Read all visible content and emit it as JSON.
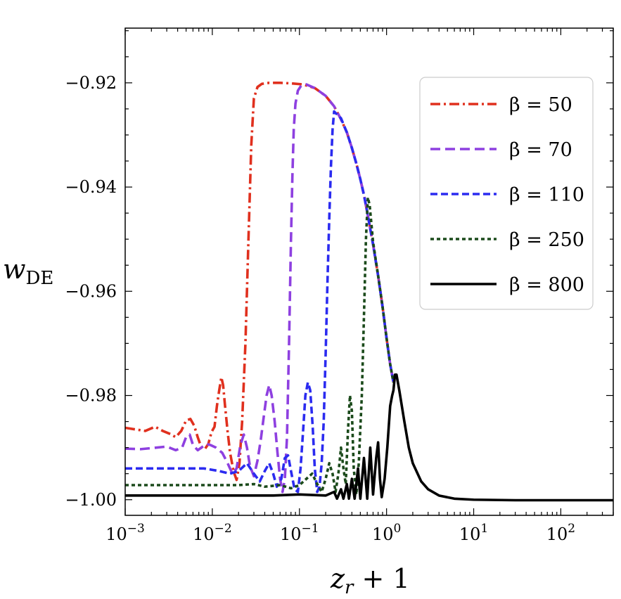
{
  "chart_data": {
    "type": "line",
    "xscale": "log",
    "xlim": [
      0.001,
      400
    ],
    "ylim": [
      -1.003,
      -0.9095
    ],
    "grid": false,
    "legend_position": "top-right",
    "xlabel": {
      "main": "z",
      "sub": "r",
      "rest": " + 1"
    },
    "ylabel": {
      "main": "w",
      "sub": "DE"
    },
    "x_ticks": [
      {
        "value": 0.001,
        "base": "10",
        "exp": "−3"
      },
      {
        "value": 0.01,
        "base": "10",
        "exp": "−2"
      },
      {
        "value": 0.1,
        "base": "10",
        "exp": "−1"
      },
      {
        "value": 1,
        "base": "10",
        "exp": "0"
      },
      {
        "value": 10,
        "base": "10",
        "exp": "1"
      },
      {
        "value": 100,
        "base": "10",
        "exp": "2"
      }
    ],
    "y_ticks": [
      {
        "value": -0.92,
        "label": "−0.92"
      },
      {
        "value": -0.94,
        "label": "−0.94"
      },
      {
        "value": -0.96,
        "label": "−0.96"
      },
      {
        "value": -0.98,
        "label": "−0.98"
      },
      {
        "value": -1.0,
        "label": "−1.00"
      }
    ],
    "series": [
      {
        "name": "β = 50",
        "color": "#e0301e",
        "dash": "dashdot",
        "points": [
          [
            0.001,
            -0.9862
          ],
          [
            0.0013,
            -0.9865
          ],
          [
            0.0017,
            -0.9868
          ],
          [
            0.0022,
            -0.986
          ],
          [
            0.0027,
            -0.9868
          ],
          [
            0.0033,
            -0.9874
          ],
          [
            0.0038,
            -0.988
          ],
          [
            0.0044,
            -0.9868
          ],
          [
            0.005,
            -0.9848
          ],
          [
            0.0056,
            -0.9845
          ],
          [
            0.0062,
            -0.9858
          ],
          [
            0.0068,
            -0.988
          ],
          [
            0.0075,
            -0.99
          ],
          [
            0.0082,
            -0.9903
          ],
          [
            0.009,
            -0.9893
          ],
          [
            0.0098,
            -0.987
          ],
          [
            0.0106,
            -0.986
          ],
          [
            0.0113,
            -0.982
          ],
          [
            0.012,
            -0.979
          ],
          [
            0.0127,
            -0.9765
          ],
          [
            0.0133,
            -0.978
          ],
          [
            0.014,
            -0.982
          ],
          [
            0.015,
            -0.987
          ],
          [
            0.016,
            -0.991
          ],
          [
            0.0175,
            -0.9945
          ],
          [
            0.019,
            -0.9962
          ],
          [
            0.0205,
            -0.993
          ],
          [
            0.022,
            -0.985
          ],
          [
            0.024,
            -0.97
          ],
          [
            0.026,
            -0.95
          ],
          [
            0.028,
            -0.932
          ],
          [
            0.03,
            -0.923
          ],
          [
            0.033,
            -0.9208
          ],
          [
            0.037,
            -0.9202
          ],
          [
            0.045,
            -0.92
          ],
          [
            0.06,
            -0.92
          ],
          [
            0.08,
            -0.9201
          ],
          [
            0.11,
            -0.9203
          ],
          [
            0.15,
            -0.921
          ],
          [
            0.2,
            -0.9225
          ],
          [
            0.25,
            -0.9245
          ],
          [
            0.3,
            -0.927
          ],
          [
            0.35,
            -0.9295
          ],
          [
            0.4,
            -0.9325
          ],
          [
            0.45,
            -0.9355
          ],
          [
            0.5,
            -0.9385
          ],
          [
            0.55,
            -0.9415
          ],
          [
            0.6,
            -0.9448
          ],
          [
            0.7,
            -0.951
          ],
          [
            0.8,
            -0.957
          ],
          [
            0.9,
            -0.963
          ],
          [
            1.0,
            -0.969
          ],
          [
            1.1,
            -0.974
          ],
          [
            1.2,
            -0.9775
          ]
        ]
      },
      {
        "name": "β = 70",
        "color": "#8e40e0",
        "dash": "dashed",
        "points": [
          [
            0.001,
            -0.9902
          ],
          [
            0.0015,
            -0.9903
          ],
          [
            0.002,
            -0.9901
          ],
          [
            0.003,
            -0.9898
          ],
          [
            0.0038,
            -0.9905
          ],
          [
            0.0045,
            -0.99
          ],
          [
            0.005,
            -0.988
          ],
          [
            0.0055,
            -0.9875
          ],
          [
            0.006,
            -0.9895
          ],
          [
            0.0068,
            -0.9905
          ],
          [
            0.0075,
            -0.99
          ],
          [
            0.0085,
            -0.9893
          ],
          [
            0.0095,
            -0.9895
          ],
          [
            0.011,
            -0.99
          ],
          [
            0.013,
            -0.991
          ],
          [
            0.015,
            -0.993
          ],
          [
            0.017,
            -0.995
          ],
          [
            0.019,
            -0.994
          ],
          [
            0.021,
            -0.9895
          ],
          [
            0.023,
            -0.9875
          ],
          [
            0.025,
            -0.99
          ],
          [
            0.027,
            -0.9935
          ],
          [
            0.03,
            -0.9955
          ],
          [
            0.033,
            -0.9925
          ],
          [
            0.036,
            -0.9885
          ],
          [
            0.039,
            -0.984
          ],
          [
            0.042,
            -0.98
          ],
          [
            0.045,
            -0.978
          ],
          [
            0.048,
            -0.98
          ],
          [
            0.052,
            -0.985
          ],
          [
            0.056,
            -0.991
          ],
          [
            0.06,
            -0.996
          ],
          [
            0.064,
            -0.9985
          ],
          [
            0.068,
            -0.996
          ],
          [
            0.072,
            -0.988
          ],
          [
            0.076,
            -0.97
          ],
          [
            0.08,
            -0.95
          ],
          [
            0.083,
            -0.938
          ],
          [
            0.086,
            -0.929
          ],
          [
            0.09,
            -0.924
          ],
          [
            0.096,
            -0.9215
          ],
          [
            0.105,
            -0.9205
          ],
          [
            0.12,
            -0.9203
          ],
          [
            0.15,
            -0.921
          ],
          [
            0.2,
            -0.9225
          ],
          [
            0.25,
            -0.9245
          ],
          [
            0.3,
            -0.927
          ],
          [
            0.35,
            -0.9295
          ],
          [
            0.4,
            -0.9325
          ],
          [
            0.45,
            -0.9355
          ],
          [
            0.5,
            -0.9385
          ],
          [
            0.55,
            -0.9415
          ],
          [
            0.6,
            -0.9448
          ],
          [
            0.7,
            -0.951
          ],
          [
            0.8,
            -0.957
          ],
          [
            0.9,
            -0.963
          ],
          [
            1.0,
            -0.969
          ],
          [
            1.1,
            -0.974
          ],
          [
            1.2,
            -0.9775
          ]
        ]
      },
      {
        "name": "β = 110",
        "color": "#2b2bf0",
        "dash": "dashed-short",
        "points": [
          [
            0.001,
            -0.994
          ],
          [
            0.004,
            -0.994
          ],
          [
            0.008,
            -0.994
          ],
          [
            0.012,
            -0.9945
          ],
          [
            0.016,
            -0.995
          ],
          [
            0.02,
            -0.9945
          ],
          [
            0.025,
            -0.993
          ],
          [
            0.03,
            -0.995
          ],
          [
            0.035,
            -0.9965
          ],
          [
            0.04,
            -0.9945
          ],
          [
            0.045,
            -0.993
          ],
          [
            0.05,
            -0.995
          ],
          [
            0.055,
            -0.9975
          ],
          [
            0.062,
            -0.996
          ],
          [
            0.068,
            -0.992
          ],
          [
            0.074,
            -0.9915
          ],
          [
            0.08,
            -0.9945
          ],
          [
            0.088,
            -0.998
          ],
          [
            0.096,
            -0.9985
          ],
          [
            0.103,
            -0.994
          ],
          [
            0.11,
            -0.987
          ],
          [
            0.117,
            -0.98
          ],
          [
            0.125,
            -0.9775
          ],
          [
            0.133,
            -0.979
          ],
          [
            0.142,
            -0.986
          ],
          [
            0.15,
            -0.994
          ],
          [
            0.16,
            -0.9985
          ],
          [
            0.17,
            -0.9975
          ],
          [
            0.18,
            -0.993
          ],
          [
            0.19,
            -0.985
          ],
          [
            0.2,
            -0.972
          ],
          [
            0.21,
            -0.958
          ],
          [
            0.22,
            -0.946
          ],
          [
            0.23,
            -0.936
          ],
          [
            0.24,
            -0.929
          ],
          [
            0.25,
            -0.9255
          ],
          [
            0.3,
            -0.9268
          ],
          [
            0.35,
            -0.9295
          ],
          [
            0.4,
            -0.9325
          ],
          [
            0.45,
            -0.9355
          ],
          [
            0.5,
            -0.9385
          ],
          [
            0.55,
            -0.9415
          ],
          [
            0.6,
            -0.9448
          ],
          [
            0.7,
            -0.951
          ],
          [
            0.8,
            -0.957
          ],
          [
            0.9,
            -0.963
          ],
          [
            1.0,
            -0.969
          ],
          [
            1.1,
            -0.974
          ],
          [
            1.2,
            -0.9775
          ]
        ]
      },
      {
        "name": "β = 250",
        "color": "#1b4a1b",
        "dash": "dotted",
        "points": [
          [
            0.001,
            -0.9972
          ],
          [
            0.01,
            -0.9972
          ],
          [
            0.02,
            -0.9972
          ],
          [
            0.03,
            -0.997
          ],
          [
            0.04,
            -0.9975
          ],
          [
            0.06,
            -0.9972
          ],
          [
            0.08,
            -0.9978
          ],
          [
            0.1,
            -0.9972
          ],
          [
            0.12,
            -0.996
          ],
          [
            0.14,
            -0.995
          ],
          [
            0.16,
            -0.997
          ],
          [
            0.18,
            -0.9985
          ],
          [
            0.2,
            -0.996
          ],
          [
            0.22,
            -0.993
          ],
          [
            0.24,
            -0.995
          ],
          [
            0.26,
            -0.9985
          ],
          [
            0.28,
            -0.995
          ],
          [
            0.3,
            -0.99
          ],
          [
            0.32,
            -0.994
          ],
          [
            0.34,
            -0.997
          ],
          [
            0.36,
            -0.987
          ],
          [
            0.38,
            -0.98
          ],
          [
            0.4,
            -0.983
          ],
          [
            0.42,
            -0.994
          ],
          [
            0.45,
            -0.999
          ],
          [
            0.48,
            -0.993
          ],
          [
            0.52,
            -0.98
          ],
          [
            0.55,
            -0.965
          ],
          [
            0.58,
            -0.95
          ],
          [
            0.61,
            -0.942
          ],
          [
            0.64,
            -0.9435
          ],
          [
            0.7,
            -0.9505
          ],
          [
            0.8,
            -0.957
          ],
          [
            0.9,
            -0.963
          ],
          [
            1.0,
            -0.969
          ],
          [
            1.1,
            -0.974
          ],
          [
            1.2,
            -0.9775
          ]
        ]
      },
      {
        "name": "β = 800",
        "color": "#000000",
        "dash": "solid",
        "points": [
          [
            0.001,
            -0.9992
          ],
          [
            0.01,
            -0.9992
          ],
          [
            0.05,
            -0.9992
          ],
          [
            0.1,
            -0.999
          ],
          [
            0.2,
            -0.9992
          ],
          [
            0.25,
            -0.9985
          ],
          [
            0.27,
            -0.9998
          ],
          [
            0.3,
            -0.998
          ],
          [
            0.32,
            -0.9998
          ],
          [
            0.35,
            -0.997
          ],
          [
            0.37,
            -0.9998
          ],
          [
            0.4,
            -0.996
          ],
          [
            0.43,
            -0.9998
          ],
          [
            0.47,
            -0.994
          ],
          [
            0.5,
            -0.9998
          ],
          [
            0.55,
            -0.992
          ],
          [
            0.6,
            -0.9998
          ],
          [
            0.65,
            -0.99
          ],
          [
            0.7,
            -0.999
          ],
          [
            0.76,
            -0.992
          ],
          [
            0.8,
            -0.989
          ],
          [
            0.84,
            -0.996
          ],
          [
            0.88,
            -0.9995
          ],
          [
            0.95,
            -0.996
          ],
          [
            1.02,
            -0.99
          ],
          [
            1.1,
            -0.982
          ],
          [
            1.16,
            -0.98
          ],
          [
            1.2,
            -0.979
          ],
          [
            1.25,
            -0.976
          ],
          [
            1.3,
            -0.976
          ],
          [
            1.4,
            -0.979
          ],
          [
            1.6,
            -0.985
          ],
          [
            1.8,
            -0.99
          ],
          [
            2.0,
            -0.993
          ],
          [
            2.5,
            -0.9965
          ],
          [
            3.0,
            -0.998
          ],
          [
            4.0,
            -0.9992
          ],
          [
            6.0,
            -0.9998
          ],
          [
            10,
            -1.0
          ],
          [
            30,
            -1.0001
          ],
          [
            100,
            -1.0001
          ],
          [
            400,
            -1.0001
          ]
        ]
      }
    ]
  }
}
